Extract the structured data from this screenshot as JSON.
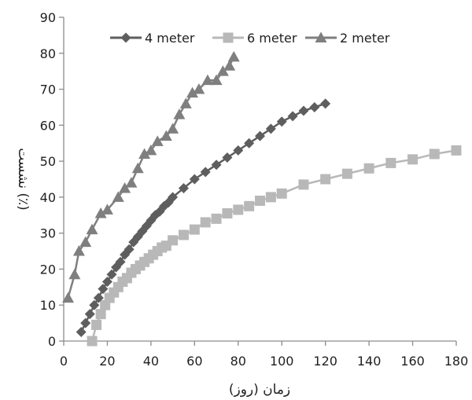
{
  "chart_data": {
    "type": "line",
    "xlabel": "زمان (روز)",
    "ylabel": "نشست (٪)",
    "xlim": [
      0,
      180
    ],
    "ylim": [
      0,
      90
    ],
    "x_ticks": [
      0,
      20,
      40,
      60,
      80,
      100,
      120,
      140,
      160,
      180
    ],
    "y_ticks": [
      0,
      10,
      20,
      30,
      40,
      50,
      60,
      70,
      80,
      90
    ],
    "grid": false,
    "legend_position": "top",
    "series": [
      {
        "name": "4 meter",
        "marker": "diamond",
        "color": "#5e5e5e",
        "x": [
          8,
          10,
          12,
          14,
          16,
          18,
          20,
          22,
          24,
          26,
          28,
          30,
          32,
          34,
          36,
          38,
          40,
          42,
          44,
          46,
          48,
          50,
          55,
          60,
          65,
          70,
          75,
          80,
          85,
          90,
          95,
          100,
          105,
          110,
          115,
          120
        ],
        "y": [
          2.5,
          5,
          7.5,
          10,
          12,
          14.5,
          16.5,
          18.5,
          20.5,
          22,
          24,
          25.5,
          27.5,
          29,
          30.5,
          32,
          33.5,
          35,
          36,
          37.5,
          38.5,
          40,
          42.5,
          45,
          47,
          49,
          51,
          53,
          55,
          57,
          59,
          61,
          62.5,
          64,
          65,
          66
        ]
      },
      {
        "name": "6 meter",
        "marker": "square",
        "color": "#b8b8b8",
        "x": [
          13,
          15,
          17,
          19,
          21,
          23,
          25,
          27,
          29,
          31,
          33,
          35,
          37,
          39,
          41,
          43,
          45,
          47,
          50,
          55,
          60,
          65,
          70,
          75,
          80,
          85,
          90,
          95,
          100,
          110,
          120,
          130,
          140,
          150,
          160,
          170,
          180
        ],
        "y": [
          0,
          4.5,
          7.5,
          10,
          12,
          13.5,
          15,
          16.5,
          17.5,
          19,
          20,
          21,
          22,
          23,
          24,
          25,
          26,
          26.5,
          28,
          29.5,
          31,
          33,
          34,
          35.5,
          36.5,
          37.5,
          39,
          40,
          41,
          43.5,
          45,
          46.5,
          48,
          49.5,
          50.5,
          52,
          53
        ]
      },
      {
        "name": "2 meter",
        "marker": "triangle",
        "color": "#7f7f7f",
        "x": [
          2,
          5,
          7,
          10,
          13,
          17,
          20,
          25,
          28,
          31,
          34,
          37,
          40,
          43,
          47,
          50,
          53,
          56,
          59,
          62,
          66,
          70,
          73,
          76,
          78
        ],
        "y": [
          12,
          18.5,
          25,
          27.5,
          31,
          35.5,
          36.5,
          40,
          42.5,
          44,
          48,
          52,
          53,
          55.5,
          57,
          59,
          63,
          66,
          69,
          70,
          72.5,
          72.5,
          75,
          76.5,
          79
        ]
      }
    ]
  }
}
